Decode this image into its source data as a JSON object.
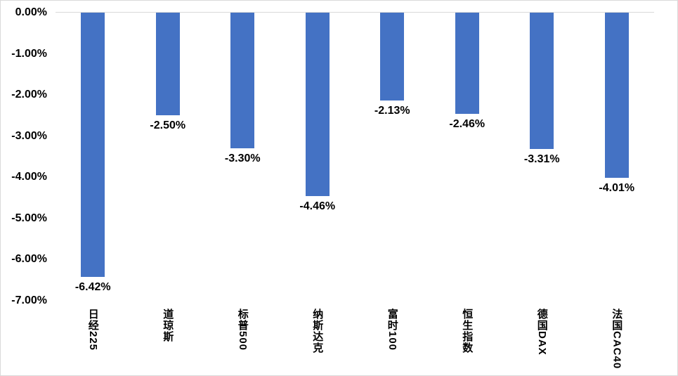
{
  "chart_data": {
    "type": "bar",
    "title": "",
    "xlabel": "",
    "ylabel": "",
    "categories": [
      "日经225",
      "道琼斯",
      "标普500",
      "纳斯达克",
      "富时100",
      "恒生指数",
      "德国DAX",
      "法国CAC40"
    ],
    "values": [
      -6.42,
      -2.5,
      -3.3,
      -4.46,
      -2.13,
      -2.46,
      -3.31,
      -4.01
    ],
    "data_labels": [
      "-6.42%",
      "-2.50%",
      "-3.30%",
      "-4.46%",
      "-2.13%",
      "-2.46%",
      "-3.31%",
      "-4.01%"
    ],
    "yticks": [
      {
        "label": "0.00%",
        "value": 0
      },
      {
        "label": "-1.00%",
        "value": -1
      },
      {
        "label": "-2.00%",
        "value": -2
      },
      {
        "label": "-3.00%",
        "value": -3
      },
      {
        "label": "-4.00%",
        "value": -4
      },
      {
        "label": "-5.00%",
        "value": -5
      },
      {
        "label": "-6.00%",
        "value": -6
      },
      {
        "label": "-7.00%",
        "value": -7
      }
    ],
    "ylim": [
      -7,
      0
    ],
    "grid": "zero-line-only",
    "legend": null,
    "colors": {
      "bar": "#4472C4",
      "gridline": "#D9D9D9",
      "border": "#D9D9D9",
      "text": "#000000",
      "background": "#FFFFFF"
    }
  }
}
